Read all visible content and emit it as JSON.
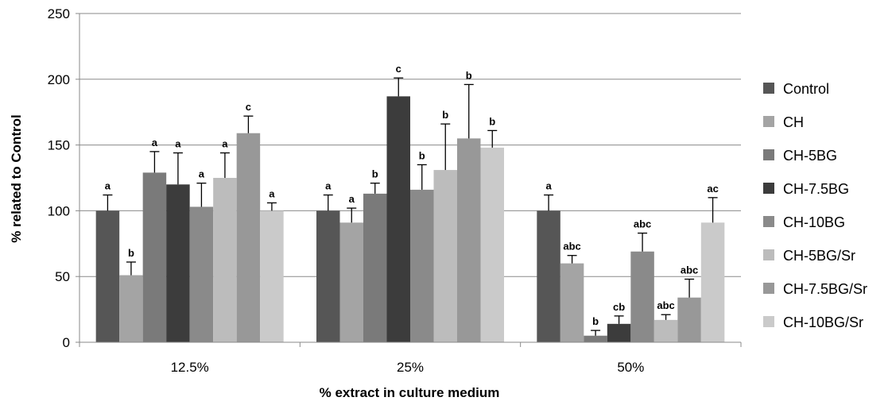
{
  "chart_data": {
    "type": "bar",
    "xlabel": "% extract in culture medium",
    "ylabel": "% related to Control",
    "ylim": [
      0,
      250
    ],
    "yticks": [
      0,
      50,
      100,
      150,
      200,
      250
    ],
    "grid": true,
    "legend_position": "right",
    "categories": [
      "12.5%",
      "25%",
      "50%"
    ],
    "series": [
      {
        "name": "Control",
        "color": "#565656",
        "values": [
          100,
          100,
          100
        ],
        "errors": [
          12,
          12,
          12
        ],
        "labels": [
          "a",
          "a",
          "a"
        ]
      },
      {
        "name": "CH",
        "color": "#a4a4a4",
        "values": [
          51,
          91,
          60
        ],
        "errors": [
          10,
          11,
          6
        ],
        "labels": [
          "b",
          "a",
          "abc"
        ]
      },
      {
        "name": "CH-5BG",
        "color": "#7a7a7a",
        "values": [
          129,
          113,
          5
        ],
        "errors": [
          16,
          8,
          4
        ],
        "labels": [
          "a",
          "b",
          "b"
        ]
      },
      {
        "name": "CH-7.5BG",
        "color": "#3c3c3c",
        "values": [
          120,
          187,
          14
        ],
        "errors": [
          24,
          14,
          6
        ],
        "labels": [
          "a",
          "c",
          "cb"
        ]
      },
      {
        "name": "CH-10BG",
        "color": "#8a8a8a",
        "values": [
          103,
          116,
          69
        ],
        "errors": [
          18,
          19,
          14
        ],
        "labels": [
          "a",
          "b",
          "abc"
        ]
      },
      {
        "name": "CH-5BG/Sr",
        "color": "#bcbcbc",
        "values": [
          125,
          131,
          17
        ],
        "errors": [
          19,
          35,
          4
        ],
        "labels": [
          "a",
          "b",
          "abc"
        ]
      },
      {
        "name": "CH-7.5BG/Sr",
        "color": "#989898",
        "values": [
          159,
          155,
          34
        ],
        "errors": [
          13,
          41,
          14
        ],
        "labels": [
          "c",
          "b",
          "abc"
        ]
      },
      {
        "name": "CH-10BG/Sr",
        "color": "#cacaca",
        "values": [
          100,
          148,
          91
        ],
        "errors": [
          6,
          13,
          19
        ],
        "labels": [
          "a",
          "b",
          "ac"
        ]
      }
    ]
  }
}
